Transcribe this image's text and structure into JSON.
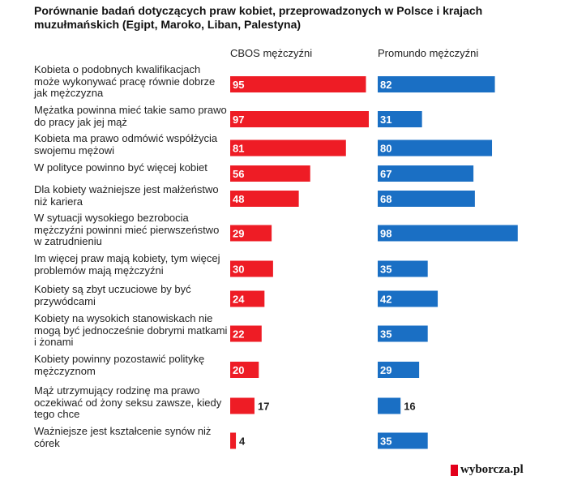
{
  "title": "Porównanie badań dotyczących praw kobiet, przeprowadzonych w Polsce i krajach muzułmańskich (Egipt, Maroko, Liban, Palestyna)",
  "brand": "wyborcza.pl",
  "colors": {
    "cbos": "#ee1c25",
    "promundo": "#1a6fc4"
  },
  "chart_data": {
    "type": "bar",
    "title": "Porównanie badań dotyczących praw kobiet, przeprowadzonych w Polsce i krajach muzułmańskich (Egipt, Maroko, Liban, Palestyna)",
    "orientation": "horizontal",
    "categories": [
      "Kobieta o podobnych kwalifikacjach może wykonywać pracę równie dobrze jak mężczyzna",
      "Mężatka powinna mieć takie samo prawo do pracy jak jej mąż",
      "Kobieta ma prawo odmówić współżycia swojemu mężowi",
      "W polityce powinno być więcej kobiet",
      "Dla kobiety ważniejsze jest małżeństwo niż kariera",
      "W sytuacji wysokiego bezrobocia mężczyźni powinni mieć pierwszeństwo w zatrudnieniu",
      "Im więcej praw mają kobiety, tym więcej problemów mają mężczyźni",
      "Kobiety są zbyt uczuciowe by być przywódcami",
      "Kobiety na wysokich stanowiskach nie mogą być jednocześnie dobrymi matkami i żonami",
      "Kobiety powinny pozostawić politykę mężczyznom",
      "Mąż utrzymujący rodzinę ma prawo oczekiwać od żony seksu zawsze, kiedy tego chce",
      "Ważniejsze jest kształcenie synów niż córek"
    ],
    "series": [
      {
        "name": "CBOS mężczyźni",
        "values": [
          95,
          97,
          81,
          56,
          48,
          29,
          30,
          24,
          22,
          20,
          17,
          4
        ]
      },
      {
        "name": "Promundo mężczyźni",
        "values": [
          82,
          31,
          80,
          67,
          68,
          98,
          35,
          42,
          35,
          29,
          16,
          35
        ]
      }
    ],
    "xlim": [
      0,
      100
    ],
    "grid": false,
    "legend": "top"
  }
}
